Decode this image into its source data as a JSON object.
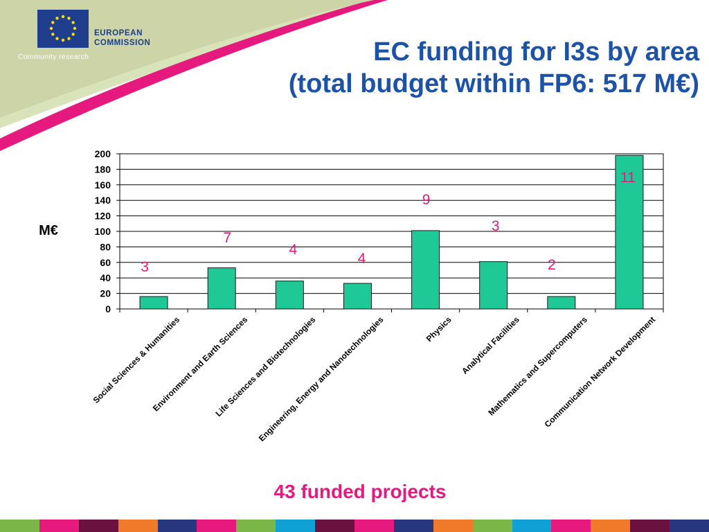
{
  "header": {
    "logo_line1": "EUROPEAN",
    "logo_line2": "COMMISSION",
    "subtitle": "Community research",
    "title_line1": "EC funding for I3s by area",
    "title_line2": "(total budget within FP6:  517 M€)"
  },
  "footer": {
    "text": "43 funded projects"
  },
  "colors": {
    "bar": "#1fc995",
    "bar_stroke": "#1a1a1a",
    "annotation": "#e5197e",
    "title": "#1c52a8",
    "swoosh_pink": "#e5197e",
    "swoosh_green": "#d8e0b4"
  },
  "strip_colors": [
    "#7ab648",
    "#e5197e",
    "#6a1140",
    "#f07a2a",
    "#27377f",
    "#e5197e",
    "#7ab648",
    "#0fa1d6",
    "#6a1140",
    "#e5197e",
    "#27377f",
    "#f07a2a",
    "#7ab648",
    "#0fa1d6",
    "#e5197e",
    "#f07a2a",
    "#6a1140",
    "#27377f"
  ],
  "chart_data": {
    "type": "bar",
    "ylabel": "M€",
    "ylim": [
      0,
      200
    ],
    "yticks": [
      0,
      20,
      40,
      60,
      80,
      100,
      120,
      140,
      160,
      180,
      200
    ],
    "grid": true,
    "categories": [
      "Social Sciences & Humanities",
      "Environment and Earth Sciences",
      "Life Sciences and Biotechnologies",
      "Engineering, Energy and Nanotechnologies",
      "Physics",
      "Analytical Facilities",
      "Mathematics and Supercomputers",
      "Communication Network Development"
    ],
    "values": [
      16,
      53,
      36,
      33,
      101,
      61,
      16,
      198
    ],
    "annotations": [
      "3",
      "7",
      "4",
      "4",
      "9",
      "3",
      "2",
      "11"
    ],
    "annotation_label": "funded projects per area"
  }
}
